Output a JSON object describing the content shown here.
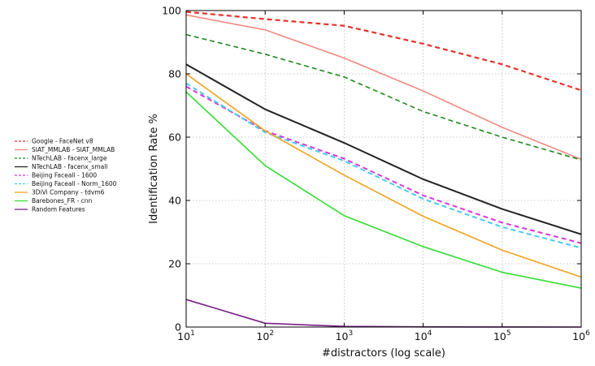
{
  "chart_data": {
    "type": "line",
    "title": "",
    "xlabel": "#distractors (log scale)",
    "ylabel": "Identification Rate %",
    "x_scale": "log",
    "x_exponents": [
      1,
      2,
      3,
      4,
      5,
      6
    ],
    "x_tick_base": "10",
    "x": [
      10,
      100,
      1000,
      10000,
      100000,
      1000000
    ],
    "xlim": [
      10,
      1000000
    ],
    "ylim": [
      0,
      100
    ],
    "yticks": [
      0,
      20,
      40,
      60,
      80,
      100
    ],
    "grid": true,
    "legend_position": "left, outside plot",
    "series": [
      {
        "name": "Google - FaceNet v8",
        "color": "#e8302a",
        "style": "dashed",
        "width": 2.2,
        "values": [
          99.6,
          97.3,
          95.2,
          89.5,
          83.0,
          74.8
        ]
      },
      {
        "name": "SIAT_MMLAB - SIAT_MMLAB",
        "color": "#f08a80",
        "style": "solid",
        "width": 1.6,
        "values": [
          98.6,
          93.9,
          85.0,
          74.6,
          63.1,
          53.0
        ]
      },
      {
        "name": "NTechLAB - facenx_large",
        "color": "#1e8a1e",
        "style": "dashed",
        "width": 1.6,
        "values": [
          92.4,
          86.2,
          79.0,
          68.1,
          60.0,
          52.8
        ]
      },
      {
        "name": "NTechLAB - facenx_small",
        "color": "#222222",
        "style": "solid",
        "width": 2.0,
        "values": [
          83.0,
          68.8,
          58.2,
          46.7,
          37.3,
          29.3
        ]
      },
      {
        "name": "Beijing Faceall - 1600",
        "color": "#d838d8",
        "style": "dashed",
        "width": 2.0,
        "values": [
          76.0,
          62.0,
          53.2,
          41.6,
          33.0,
          26.5
        ]
      },
      {
        "name": "Beijing Faceall - Norm_1600",
        "color": "#44ccee",
        "style": "dashed",
        "width": 2.0,
        "values": [
          77.0,
          61.5,
          52.5,
          40.5,
          31.6,
          25.0
        ]
      },
      {
        "name": "3DiVi Company - tdvm6",
        "color": "#f0a21e",
        "style": "solid",
        "width": 1.6,
        "values": [
          80.0,
          62.0,
          48.0,
          35.0,
          24.3,
          15.8
        ]
      },
      {
        "name": "Barebones_FR - cnn",
        "color": "#33dd33",
        "style": "solid",
        "width": 1.6,
        "values": [
          74.3,
          51.0,
          35.2,
          25.4,
          17.3,
          12.3
        ]
      },
      {
        "name": "Random Features",
        "color": "#7a1e88",
        "style": "solid",
        "width": 1.6,
        "values": [
          8.7,
          1.2,
          0.2,
          0.05,
          0.02,
          0.0
        ]
      }
    ]
  }
}
